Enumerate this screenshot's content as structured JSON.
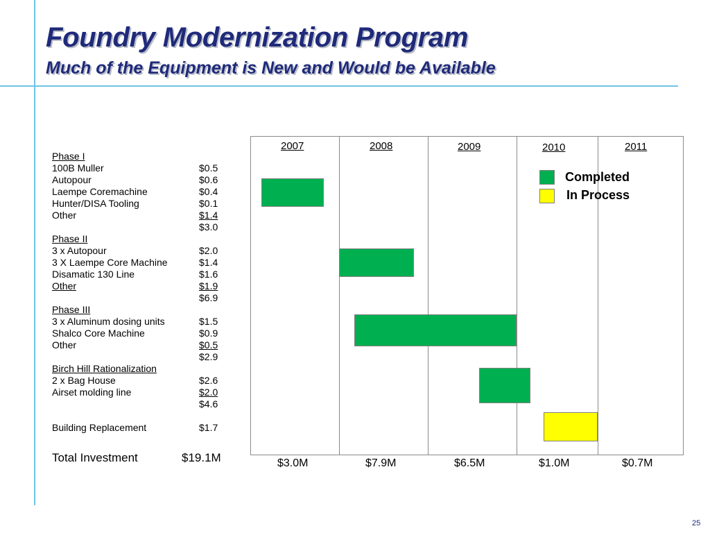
{
  "header": {
    "title": "Foundry Modernization Program",
    "subtitle": "Much of the Equipment is New and Would be Available"
  },
  "phases": {
    "phase1": {
      "heading": "Phase I",
      "items": [
        {
          "label": "100B Muller",
          "value": "$0.5"
        },
        {
          "label": "Autopour",
          "value": "$0.6"
        },
        {
          "label": "Laempe Coremachine",
          "value": "$0.4"
        },
        {
          "label": "Hunter/DISA Tooling",
          "value": "$0.1"
        },
        {
          "label": "Other",
          "value": "$1.4"
        }
      ],
      "subtotal": "$3.0"
    },
    "phase2": {
      "heading": "Phase II",
      "items": [
        {
          "label": "3 x Autopour",
          "value": "$2.0"
        },
        {
          "label": "3 X Laempe Core Machine",
          "value": "$1.4"
        },
        {
          "label": "Disamatic 130 Line",
          "value": "$1.6"
        },
        {
          "label": "Other",
          "value": "$1.9"
        }
      ],
      "subtotal": "$6.9"
    },
    "phase3": {
      "heading": "Phase III",
      "items": [
        {
          "label": "3 x Aluminum dosing units",
          "value": "$1.5"
        },
        {
          "label": "Shalco Core Machine",
          "value": "$0.9"
        },
        {
          "label": "Other",
          "value": "$0.5"
        }
      ],
      "subtotal": "$2.9"
    },
    "birch": {
      "heading": "Birch Hill Rationalization",
      "items": [
        {
          "label": "2 x Bag House",
          "value": "$2.6"
        },
        {
          "label": "Airset molding line",
          "value": "$2.0"
        }
      ],
      "subtotal": "$4.6"
    },
    "building": {
      "label": "Building Replacement",
      "value": "$1.7"
    }
  },
  "total": {
    "label": "Total Investment",
    "value": "$19.1M"
  },
  "chart": {
    "years": [
      "2007",
      "2008",
      "2009",
      "2010",
      "2011"
    ],
    "year_totals": [
      "$3.0M",
      "$7.9M",
      "$6.5M",
      "$1.0M",
      "$0.7M"
    ],
    "legend": {
      "completed": "Completed",
      "in_process": "In Process"
    },
    "colors": {
      "completed": "#00b050",
      "in_process": "#ffff00",
      "accent": "#1f2a7a",
      "rule": "#6fc3e3"
    }
  },
  "chart_data": {
    "type": "gantt",
    "categories": [
      "2007",
      "2008",
      "2009",
      "2010",
      "2011"
    ],
    "tasks": [
      {
        "name": "Phase I",
        "start": 2007.12,
        "end": 2007.83,
        "status": "Completed"
      },
      {
        "name": "Phase II",
        "start": 2008.0,
        "end": 2008.84,
        "status": "Completed"
      },
      {
        "name": "Phase III",
        "start": 2008.17,
        "end": 2010.0,
        "status": "Completed"
      },
      {
        "name": "Birch Hill Rationalization",
        "start": 2009.58,
        "end": 2010.17,
        "status": "Completed"
      },
      {
        "name": "Building Replacement",
        "start": 2010.33,
        "end": 2011.0,
        "status": "In Process"
      }
    ],
    "xlim": [
      2007,
      2012
    ]
  },
  "page_number": "25"
}
